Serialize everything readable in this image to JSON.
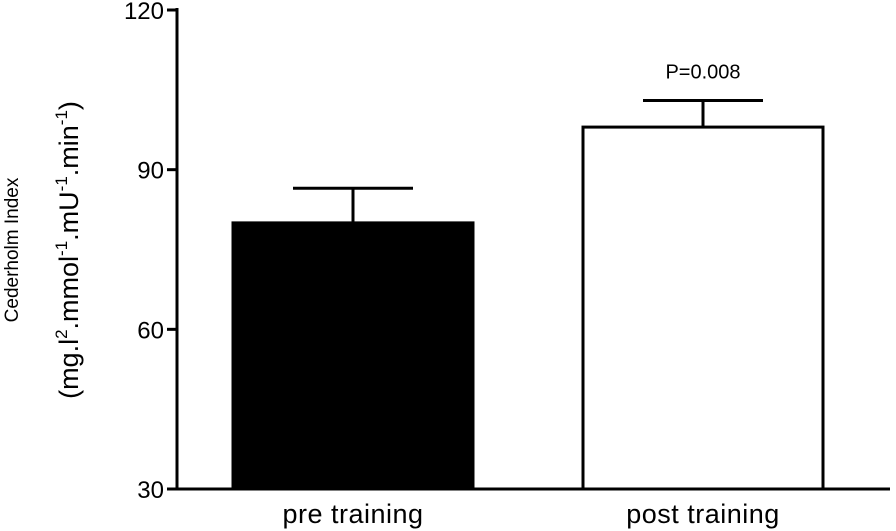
{
  "chart_data": {
    "type": "bar",
    "categories": [
      "pre training",
      "post training"
    ],
    "values": [
      80,
      98
    ],
    "error_upper": [
      86.5,
      103
    ],
    "bar_fill": [
      "#000000",
      "#ffffff"
    ],
    "ylim": [
      30,
      120
    ],
    "yticks": [
      "30",
      "60",
      "90",
      "120"
    ],
    "ylabel_line1": "Cederholm Index",
    "ylabel_line2": {
      "p1": "(mg.l",
      "s1": "2",
      "p2": ".mmol",
      "s2": "-1",
      "p3": ".mU",
      "s3": "-1",
      "p4": ".min",
      "s4": "-1",
      "p5": ")"
    },
    "annotation": "P=0.008",
    "grid": false
  }
}
